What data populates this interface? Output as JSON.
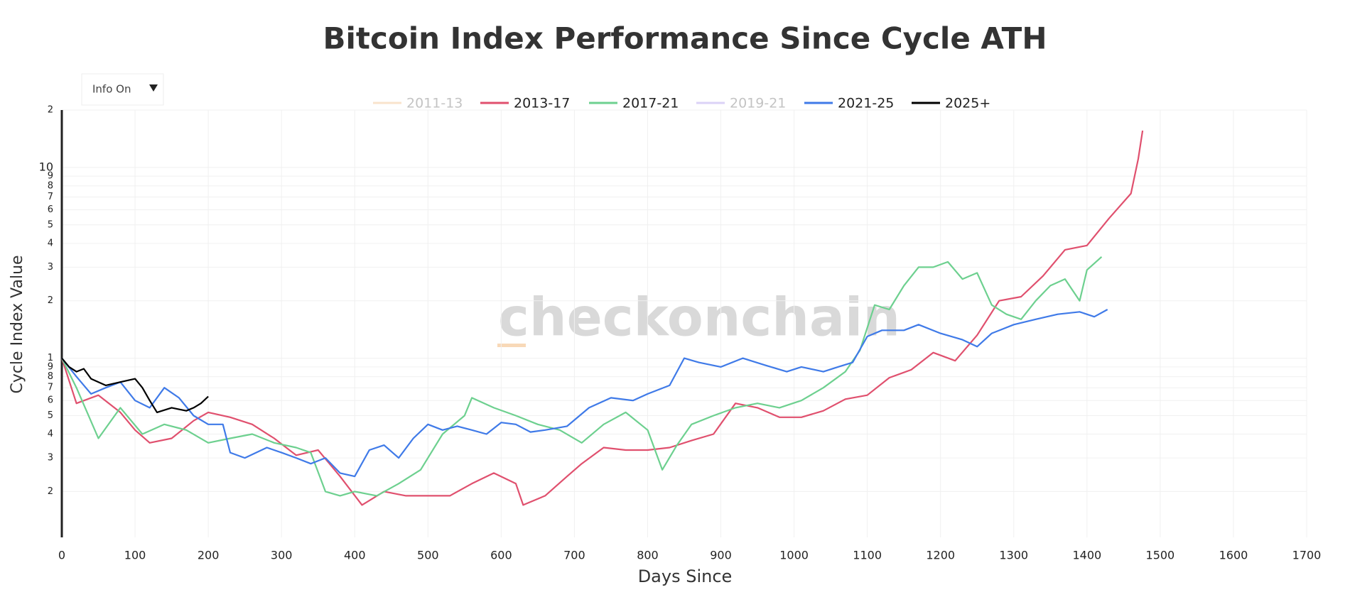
{
  "chart_data": {
    "type": "line",
    "title": "Bitcoin Index Performance Since Cycle ATH",
    "x_label": "Days Since",
    "y_label": "Cycle Index Value",
    "watermark": "checkonchain",
    "info_button": "Info On",
    "log_y": true,
    "grid": true,
    "legend": "top",
    "xlim": [
      0,
      1700
    ],
    "xticks": [
      0,
      100,
      200,
      300,
      400,
      500,
      600,
      700,
      800,
      900,
      1000,
      1100,
      1200,
      1300,
      1400,
      1500,
      1600,
      1700
    ],
    "ylim": [
      0.115,
      20
    ],
    "yticks": [
      {
        "value": 20,
        "label": "2"
      },
      10,
      9,
      8,
      7,
      6,
      5,
      4,
      3,
      2,
      1,
      {
        "value": 0.9,
        "label": "9"
      },
      {
        "value": 0.8,
        "label": "8"
      },
      {
        "value": 0.7,
        "label": "7"
      },
      {
        "value": 0.6,
        "label": "6"
      },
      {
        "value": 0.5,
        "label": "5"
      },
      {
        "value": 0.4,
        "label": "4"
      },
      {
        "value": 0.3,
        "label": "3"
      },
      {
        "value": 0.2,
        "label": "2"
      }
    ],
    "series": [
      {
        "name": "2011-13",
        "color": "#f5c99a",
        "visible": false,
        "x": [],
        "values": []
      },
      {
        "name": "2013-17",
        "color": "#e0506e",
        "visible": true,
        "x": [
          0,
          20,
          50,
          80,
          100,
          120,
          150,
          180,
          200,
          230,
          260,
          290,
          320,
          350,
          380,
          410,
          440,
          470,
          500,
          530,
          560,
          590,
          620,
          630,
          660,
          690,
          710,
          740,
          770,
          800,
          830,
          860,
          890,
          920,
          950,
          980,
          1010,
          1040,
          1070,
          1100,
          1130,
          1160,
          1190,
          1220,
          1250,
          1280,
          1310,
          1340,
          1370,
          1400,
          1430,
          1460,
          1470,
          1476
        ],
        "values": [
          1.0,
          0.58,
          0.64,
          0.52,
          0.42,
          0.36,
          0.38,
          0.47,
          0.52,
          0.49,
          0.45,
          0.38,
          0.31,
          0.33,
          0.24,
          0.17,
          0.2,
          0.19,
          0.19,
          0.19,
          0.22,
          0.25,
          0.22,
          0.17,
          0.19,
          0.24,
          0.28,
          0.34,
          0.33,
          0.33,
          0.34,
          0.37,
          0.4,
          0.58,
          0.55,
          0.49,
          0.49,
          0.53,
          0.61,
          0.64,
          0.79,
          0.87,
          1.07,
          0.97,
          1.32,
          2.0,
          2.1,
          2.7,
          3.7,
          3.9,
          5.4,
          7.3,
          11.1,
          15.6
        ]
      },
      {
        "name": "2017-21",
        "color": "#6dd08f",
        "visible": true,
        "x": [
          0,
          20,
          50,
          80,
          110,
          140,
          170,
          200,
          230,
          260,
          290,
          320,
          340,
          360,
          380,
          400,
          430,
          460,
          490,
          520,
          550,
          560,
          590,
          620,
          650,
          680,
          710,
          740,
          770,
          800,
          820,
          840,
          860,
          890,
          920,
          950,
          980,
          1010,
          1040,
          1070,
          1090,
          1110,
          1130,
          1150,
          1170,
          1190,
          1210,
          1230,
          1250,
          1270,
          1290,
          1310,
          1330,
          1350,
          1370,
          1390,
          1400,
          1420
        ],
        "values": [
          1.0,
          0.7,
          0.38,
          0.55,
          0.4,
          0.45,
          0.42,
          0.36,
          0.38,
          0.4,
          0.36,
          0.34,
          0.32,
          0.2,
          0.19,
          0.2,
          0.19,
          0.22,
          0.26,
          0.4,
          0.5,
          0.62,
          0.55,
          0.5,
          0.45,
          0.42,
          0.36,
          0.45,
          0.52,
          0.42,
          0.26,
          0.35,
          0.45,
          0.5,
          0.55,
          0.58,
          0.55,
          0.6,
          0.7,
          0.85,
          1.1,
          1.9,
          1.8,
          2.4,
          3.0,
          3.0,
          3.2,
          2.6,
          2.8,
          1.9,
          1.7,
          1.6,
          2.0,
          2.4,
          2.6,
          2.0,
          2.9,
          3.4
        ]
      },
      {
        "name": "2019-21",
        "color": "#b9a6f0",
        "visible": false,
        "x": [],
        "values": []
      },
      {
        "name": "2021-25",
        "color": "#3f7ae8",
        "visible": true,
        "x": [
          0,
          20,
          40,
          60,
          80,
          100,
          120,
          140,
          160,
          180,
          200,
          220,
          230,
          250,
          280,
          300,
          320,
          340,
          360,
          380,
          400,
          420,
          440,
          460,
          480,
          500,
          520,
          540,
          560,
          580,
          600,
          620,
          640,
          660,
          690,
          720,
          750,
          780,
          800,
          830,
          850,
          870,
          900,
          930,
          960,
          990,
          1010,
          1040,
          1060,
          1080,
          1100,
          1120,
          1150,
          1170,
          1200,
          1230,
          1250,
          1270,
          1300,
          1330,
          1360,
          1390,
          1410,
          1428
        ],
        "values": [
          1.0,
          0.8,
          0.65,
          0.7,
          0.75,
          0.6,
          0.55,
          0.7,
          0.62,
          0.5,
          0.45,
          0.45,
          0.32,
          0.3,
          0.34,
          0.32,
          0.3,
          0.28,
          0.3,
          0.25,
          0.24,
          0.33,
          0.35,
          0.3,
          0.38,
          0.45,
          0.42,
          0.44,
          0.42,
          0.4,
          0.46,
          0.45,
          0.41,
          0.42,
          0.44,
          0.55,
          0.62,
          0.6,
          0.65,
          0.72,
          1.0,
          0.95,
          0.9,
          1.0,
          0.92,
          0.85,
          0.9,
          0.85,
          0.9,
          0.95,
          1.3,
          1.4,
          1.4,
          1.5,
          1.35,
          1.25,
          1.15,
          1.35,
          1.5,
          1.6,
          1.7,
          1.75,
          1.65,
          1.8
        ]
      },
      {
        "name": "2025+",
        "color": "#000000",
        "visible": true,
        "x": [
          0,
          10,
          20,
          30,
          40,
          60,
          80,
          100,
          110,
          120,
          130,
          150,
          170,
          180,
          190,
          200
        ],
        "values": [
          1.0,
          0.9,
          0.85,
          0.88,
          0.78,
          0.72,
          0.75,
          0.78,
          0.7,
          0.6,
          0.52,
          0.55,
          0.53,
          0.55,
          0.58,
          0.63
        ]
      }
    ]
  }
}
